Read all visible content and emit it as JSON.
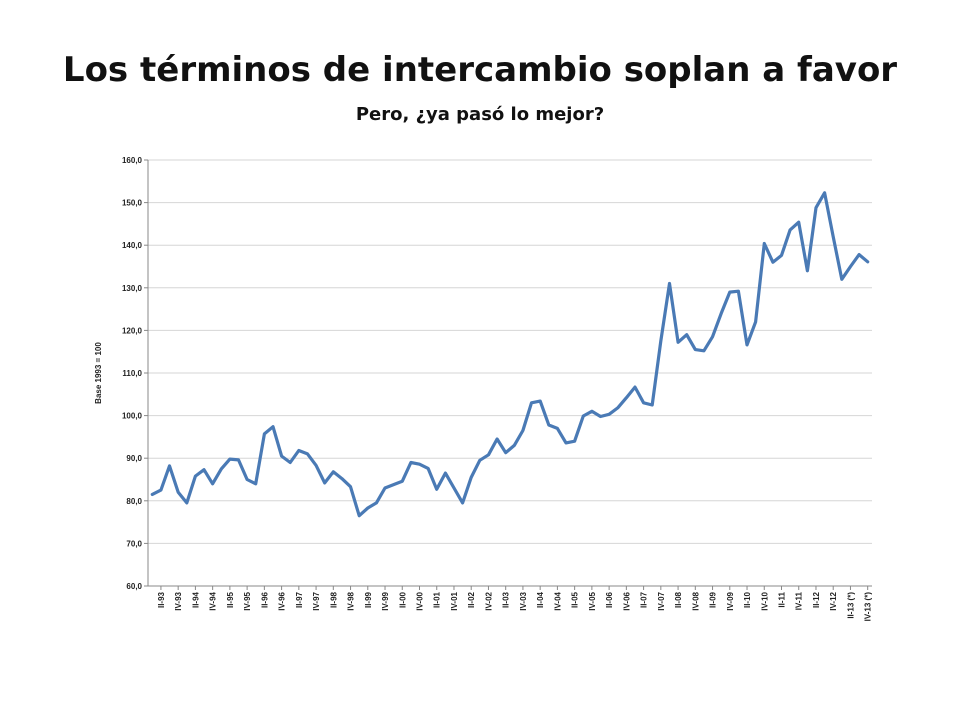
{
  "title": "Los términos de intercambio soplan a favor",
  "subtitle": "Pero, ¿ya pasó lo mejor?",
  "chart_data": {
    "type": "line",
    "ylabel": "Base 1993 = 100",
    "ylim": [
      60,
      160
    ],
    "yticks": [
      "60,0",
      "70,0",
      "80,0",
      "90,0",
      "100,0",
      "110,0",
      "120,0",
      "130,0",
      "140,0",
      "150,0",
      "160,0"
    ],
    "grid": true,
    "line_color": "#4a7ab5",
    "xticks": [
      "II-93",
      "IV-93",
      "II-94",
      "IV-94",
      "II-95",
      "IV-95",
      "II-96",
      "IV-96",
      "II-97",
      "IV-97",
      "II-98",
      "IV-98",
      "II-99",
      "IV-99",
      "II-00",
      "IV-00",
      "II-01",
      "IV-01",
      "II-02",
      "IV-02",
      "II-03",
      "IV-03",
      "II-04",
      "IV-04",
      "II-05",
      "IV-05",
      "II-06",
      "IV-06",
      "II-07",
      "IV-07",
      "II-08",
      "IV-08",
      "II-09",
      "IV-09",
      "II-10",
      "IV-10",
      "II-11",
      "IV-11",
      "II-12",
      "IV-12",
      "II-13 (*)",
      "IV-13 (*)"
    ],
    "series": [
      {
        "values": [
          81.5,
          82.5,
          88.2,
          82.0,
          79.5,
          85.8,
          87.3,
          84.0,
          87.5,
          89.8,
          89.6,
          85.0,
          84.0,
          95.7,
          97.4,
          90.5,
          89.0,
          91.8,
          91.0,
          88.3,
          84.2,
          86.8,
          85.2,
          83.3,
          76.5,
          78.3,
          79.5,
          83.0,
          83.8,
          84.6,
          89.0,
          88.6,
          87.6,
          82.7,
          86.5,
          83.0,
          79.5,
          85.5,
          89.5,
          90.8,
          94.5,
          91.3,
          93.0,
          96.5,
          103.0,
          103.4,
          97.8,
          97.0,
          93.6,
          94.0,
          99.9,
          101.0,
          99.8,
          100.3,
          101.8,
          104.2,
          106.7,
          103.0,
          102.5,
          117.5,
          131.0,
          117.2,
          119.0,
          115.5,
          115.2,
          118.5,
          124.0,
          129.0,
          129.2,
          116.6,
          122.0,
          140.4,
          136.0,
          137.6,
          143.6,
          145.4,
          134.0,
          148.8,
          152.3,
          142.0,
          132.0,
          135.0,
          137.8,
          136.1
        ]
      }
    ]
  }
}
